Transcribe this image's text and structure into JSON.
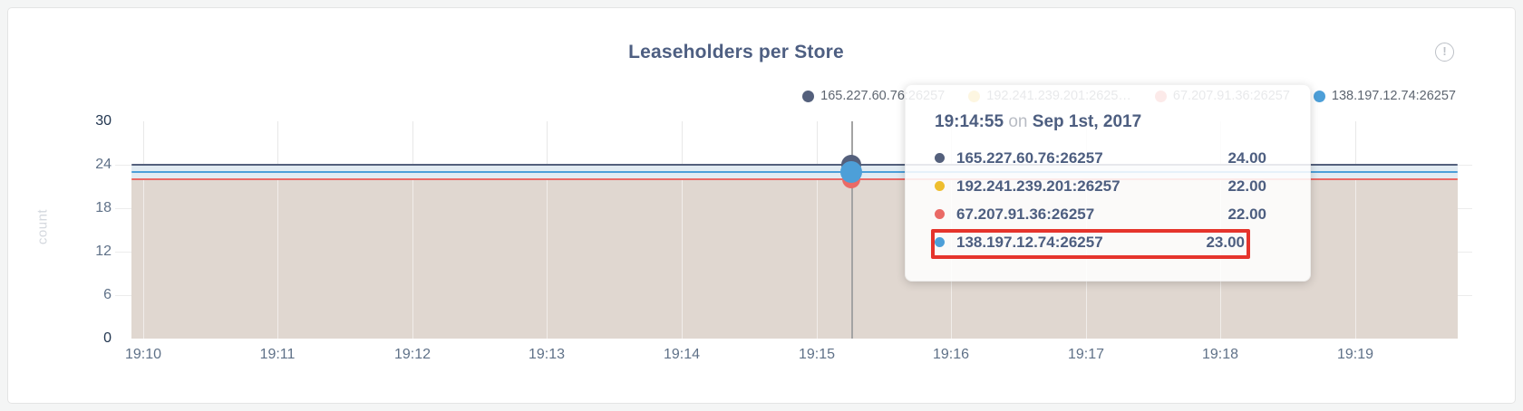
{
  "panel": {
    "title": "Leaseholders per Store",
    "info_glyph": "!"
  },
  "legend": {
    "items": [
      {
        "label": "165.227.60.76:26257",
        "color": "#54607c"
      },
      {
        "label": "192.241.239.201:2625…",
        "color": "#eebe2e"
      },
      {
        "label": "67.207.91.36:26257",
        "color": "#ea6a66"
      },
      {
        "label": "138.197.12.74:26257",
        "color": "#4d9fd8"
      }
    ]
  },
  "tooltip": {
    "time": "19:14:55",
    "on_word": "on",
    "date": "Sep 1st, 2017",
    "rows": [
      {
        "label": "165.227.60.76:26257",
        "value": "24.00",
        "color": "#54607c",
        "highlighted": false
      },
      {
        "label": "192.241.239.201:26257",
        "value": "22.00",
        "color": "#eebe2e",
        "highlighted": false
      },
      {
        "label": "67.207.91.36:26257",
        "value": "22.00",
        "color": "#ea6a66",
        "highlighted": false
      },
      {
        "label": "138.197.12.74:26257",
        "value": "23.00",
        "color": "#4d9fd8",
        "highlighted": true
      }
    ],
    "highlight_color": "#e5342c"
  },
  "chart_data": {
    "type": "line",
    "title": "Leaseholders per Store",
    "xlabel": "",
    "ylabel": "count",
    "x_ticks": [
      "19:10",
      "19:11",
      "19:12",
      "19:13",
      "19:14",
      "19:15",
      "19:16",
      "19:17",
      "19:18",
      "19:19"
    ],
    "y_ticks": [
      0,
      6,
      12,
      18,
      24,
      30
    ],
    "ylim": [
      0,
      30
    ],
    "grid": true,
    "legend_position": "top-right",
    "area_fill_color": "#e0d7d0",
    "series": [
      {
        "name": "165.227.60.76:26257",
        "color": "#54607c",
        "values": [
          24,
          24,
          24,
          24,
          24,
          24,
          24,
          24,
          24,
          24
        ]
      },
      {
        "name": "192.241.239.201:26257",
        "color": "#eebe2e",
        "values": [
          22,
          22,
          22,
          22,
          22,
          22,
          22,
          22,
          22,
          22
        ]
      },
      {
        "name": "67.207.91.36:26257",
        "color": "#ea6a66",
        "values": [
          22,
          22,
          22,
          22,
          22,
          22,
          22,
          22,
          22,
          22
        ]
      },
      {
        "name": "138.197.12.74:26257",
        "color": "#4d9fd8",
        "values": [
          23,
          23,
          23,
          23,
          23,
          23,
          23,
          23,
          23,
          23
        ]
      }
    ],
    "hover_point": {
      "time": "19:14:55",
      "date": "Sep 1st, 2017",
      "values": [
        24,
        22,
        22,
        23
      ]
    }
  }
}
